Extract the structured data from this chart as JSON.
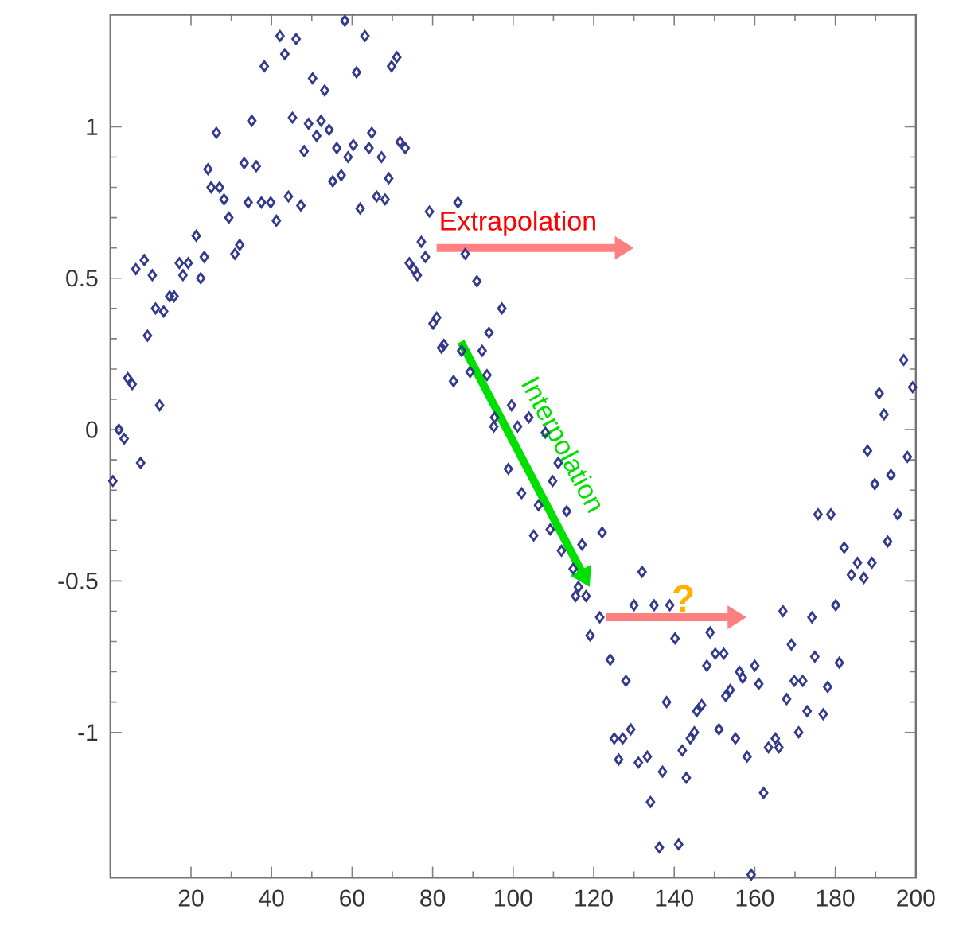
{
  "chart_data": {
    "type": "scatter",
    "marker": "diamond",
    "xlim": [
      0,
      200
    ],
    "ylim": [
      -1.48,
      1.37
    ],
    "xticks": [
      20,
      40,
      60,
      80,
      100,
      120,
      140,
      160,
      180,
      200
    ],
    "yticks": [
      -1,
      -0.5,
      0,
      0.5,
      1
    ],
    "annotations": [
      "Extrapolation",
      "Interpolation",
      "?"
    ],
    "series": [
      {
        "color": "#333a8c",
        "x": [
          58.2,
          42.1,
          46.1,
          63.2,
          43.3,
          71.1,
          69.8,
          38.2,
          61.1,
          50.2,
          53.2,
          26.3,
          35.1,
          45.2,
          49.2,
          52.3,
          54.3,
          51.2,
          64.9,
          71.9,
          73.2,
          48.1,
          56.2,
          60.3,
          59.0,
          64.2,
          67.3,
          33.2,
          36.2,
          24.2,
          69.1,
          55.2,
          57.3,
          25.0,
          27.1,
          28.2,
          34.2,
          37.5,
          39.8,
          44.2,
          66.1,
          68.2,
          47.3,
          62.0,
          29.4,
          41.2,
          21.3,
          79.2,
          86.3,
          77.2,
          32.1,
          30.9,
          23.3,
          17.1,
          19.3,
          18.0,
          22.4,
          8.4,
          6.3,
          10.4,
          78.2,
          74.2,
          75.3,
          76.2,
          88.1,
          91.0,
          97.2,
          15.8,
          14.7,
          11.2,
          13.2,
          81.0,
          80.1,
          9.2,
          94.0,
          82.8,
          82.2,
          87.2,
          92.3,
          85.2,
          89.3,
          4.3,
          5.4,
          12.2,
          2.1,
          3.4,
          7.5,
          95.2,
          0.6,
          93.5,
          99.6,
          103.9,
          95.4,
          101.1,
          108.0,
          111.2,
          98.8,
          109.8,
          102.1,
          106.3,
          113.3,
          109.2,
          105.1,
          117.1,
          122.1,
          112.0,
          114.9,
          116.2,
          115.5,
          118.1,
          132.0,
          121.5,
          130.0,
          135.0,
          138.9,
          119.1,
          197.0,
          199.2,
          190.9,
          192.1,
          188.0,
          197.9,
          193.8,
          189.8,
          195.5,
          175.7,
          178.9,
          193.0,
          182.2,
          185.5,
          189.1,
          184.0,
          187.1,
          180.1,
          167.0,
          174.2,
          140.2,
          148.9,
          124.1,
          169.1,
          174.9,
          181.0,
          150.2,
          152.3,
          148.1,
          160.0,
          156.2,
          157.0,
          161.0,
          169.8,
          171.9,
          128.0,
          178.1,
          153.9,
          152.8,
          167.9,
          138.1,
          146.8,
          145.6,
          173.0,
          177.0,
          129.2,
          125.1,
          127.2,
          151.1,
          170.9,
          145.0,
          144.0,
          155.2,
          165.1,
          163.4,
          166.0,
          126.2,
          131.1,
          133.3,
          142.0,
          158.1,
          137.1,
          143.0,
          162.2,
          134.1,
          136.3,
          141.1,
          159.1
        ],
        "values": [
          1.35,
          1.3,
          1.29,
          1.3,
          1.24,
          1.23,
          1.2,
          1.2,
          1.18,
          1.16,
          1.12,
          0.98,
          1.02,
          1.03,
          1.01,
          1.02,
          0.99,
          0.97,
          0.98,
          0.95,
          0.93,
          0.92,
          0.93,
          0.94,
          0.9,
          0.93,
          0.9,
          0.88,
          0.87,
          0.86,
          0.83,
          0.82,
          0.84,
          0.8,
          0.8,
          0.76,
          0.75,
          0.75,
          0.75,
          0.77,
          0.77,
          0.76,
          0.74,
          0.73,
          0.7,
          0.69,
          0.64,
          0.72,
          0.75,
          0.62,
          0.61,
          0.58,
          0.57,
          0.55,
          0.55,
          0.51,
          0.5,
          0.56,
          0.53,
          0.51,
          0.57,
          0.55,
          0.53,
          0.51,
          0.58,
          0.49,
          0.4,
          0.44,
          0.44,
          0.4,
          0.39,
          0.37,
          0.35,
          0.31,
          0.32,
          0.28,
          0.27,
          0.26,
          0.26,
          0.16,
          0.19,
          0.17,
          0.15,
          0.08,
          0.0,
          -0.03,
          -0.11,
          0.01,
          -0.17,
          0.18,
          0.08,
          0.04,
          0.04,
          0.01,
          -0.01,
          -0.11,
          -0.13,
          -0.17,
          -0.21,
          -0.25,
          -0.27,
          -0.33,
          -0.35,
          -0.38,
          -0.34,
          -0.4,
          -0.46,
          -0.52,
          -0.55,
          -0.55,
          -0.47,
          -0.62,
          -0.58,
          -0.58,
          -0.58,
          -0.68,
          0.23,
          0.14,
          0.12,
          0.05,
          -0.07,
          -0.09,
          -0.15,
          -0.18,
          -0.28,
          -0.28,
          -0.28,
          -0.37,
          -0.39,
          -0.44,
          -0.44,
          -0.48,
          -0.49,
          -0.58,
          -0.6,
          -0.62,
          -0.69,
          -0.67,
          -0.76,
          -0.71,
          -0.75,
          -0.77,
          -0.74,
          -0.74,
          -0.78,
          -0.78,
          -0.8,
          -0.82,
          -0.84,
          -0.83,
          -0.83,
          -0.83,
          -0.85,
          -0.86,
          -0.88,
          -0.89,
          -0.9,
          -0.91,
          -0.93,
          -0.93,
          -0.94,
          -0.99,
          -1.02,
          -1.02,
          -0.99,
          -1.0,
          -1.0,
          -1.02,
          -1.02,
          -1.02,
          -1.05,
          -1.05,
          -1.09,
          -1.1,
          -1.08,
          -1.06,
          -1.08,
          -1.13,
          -1.15,
          -1.2,
          -1.23,
          -1.38,
          -1.37,
          -1.47
        ]
      }
    ]
  }
}
